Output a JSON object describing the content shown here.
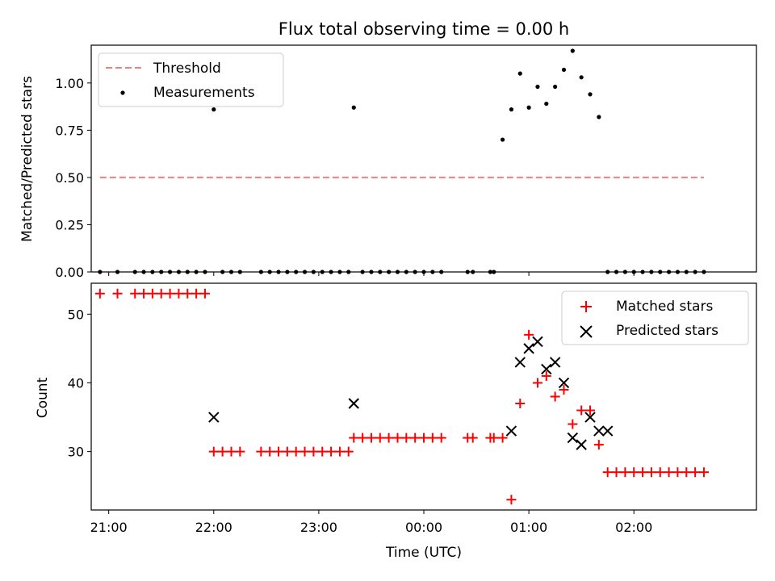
{
  "chart_data": [
    {
      "type": "scatter",
      "title": "Flux total observing time = 0.00 h",
      "xlabel": "",
      "ylabel": "Matched/Predicted stars",
      "xlim": [
        "20:50",
        "03:10"
      ],
      "ylim": [
        0,
        1.2
      ],
      "yticks": [
        "0.00",
        "0.25",
        "0.50",
        "0.75",
        "1.00"
      ],
      "ytick_values": [
        0,
        0.25,
        0.5,
        0.75,
        1.0
      ],
      "legend": "top-left",
      "colors": {
        "threshold": "#f08080",
        "measurements": "#000000"
      },
      "series": [
        {
          "name": "Threshold",
          "kind": "line",
          "style": "dashed",
          "x": [
            "20:55",
            "02:40"
          ],
          "y": [
            0.5,
            0.5
          ]
        },
        {
          "name": "Measurements",
          "kind": "scatter",
          "x": [
            "20:55",
            "21:05",
            "21:15",
            "21:20",
            "21:25",
            "21:30",
            "21:35",
            "21:40",
            "21:45",
            "21:50",
            "21:55",
            "22:00",
            "22:05",
            "22:10",
            "22:15",
            "22:27",
            "22:32",
            "22:37",
            "22:42",
            "22:47",
            "22:52",
            "22:57",
            "23:02",
            "23:07",
            "23:12",
            "23:17",
            "23:20",
            "23:25",
            "23:30",
            "23:35",
            "23:40",
            "23:45",
            "23:50",
            "23:55",
            "00:00",
            "00:05",
            "00:10",
            "00:25",
            "00:28",
            "00:38",
            "00:40",
            "00:45",
            "00:50",
            "00:55",
            "01:00",
            "01:05",
            "01:10",
            "01:15",
            "01:20",
            "01:25",
            "01:30",
            "01:35",
            "01:40",
            "01:45",
            "01:50",
            "01:55",
            "02:00",
            "02:05",
            "02:10",
            "02:15",
            "02:20",
            "02:25",
            "02:30",
            "02:35",
            "02:40"
          ],
          "y": [
            0,
            0,
            0,
            0,
            0,
            0,
            0,
            0,
            0,
            0,
            0,
            0.86,
            0,
            0,
            0,
            0,
            0,
            0,
            0,
            0,
            0,
            0,
            0,
            0,
            0,
            0,
            0.87,
            0,
            0,
            0,
            0,
            0,
            0,
            0,
            0,
            0,
            0,
            0,
            0,
            0,
            0,
            0.7,
            0.86,
            1.05,
            0.87,
            0.98,
            0.89,
            0.98,
            1.07,
            1.17,
            1.03,
            0.94,
            0.82,
            0,
            0,
            0,
            0,
            0,
            0,
            0,
            0,
            0,
            0,
            0,
            0
          ]
        }
      ]
    },
    {
      "type": "scatter",
      "title": "",
      "xlabel": "Time (UTC)",
      "ylabel": "Count",
      "xlim": [
        "20:50",
        "03:10"
      ],
      "ylim": [
        21.5,
        54.5
      ],
      "yticks": [
        "30",
        "40",
        "50"
      ],
      "ytick_values": [
        30,
        40,
        50
      ],
      "xticks": [
        "21:00",
        "22:00",
        "23:00",
        "00:00",
        "01:00",
        "02:00"
      ],
      "legend": "top-right",
      "colors": {
        "matched": "#ff0000",
        "predicted": "#000000"
      },
      "series": [
        {
          "name": "Matched stars",
          "marker": "+",
          "x": [
            "20:55",
            "21:05",
            "21:15",
            "21:20",
            "21:25",
            "21:30",
            "21:35",
            "21:40",
            "21:45",
            "21:50",
            "21:55",
            "22:00",
            "22:05",
            "22:10",
            "22:15",
            "22:27",
            "22:32",
            "22:37",
            "22:42",
            "22:47",
            "22:52",
            "22:57",
            "23:02",
            "23:07",
            "23:12",
            "23:17",
            "23:20",
            "23:25",
            "23:30",
            "23:35",
            "23:40",
            "23:45",
            "23:50",
            "23:55",
            "00:00",
            "00:05",
            "00:10",
            "00:25",
            "00:28",
            "00:38",
            "00:40",
            "00:45",
            "00:50",
            "00:55",
            "01:00",
            "01:05",
            "01:10",
            "01:15",
            "01:20",
            "01:25",
            "01:30",
            "01:35",
            "01:40",
            "01:45",
            "01:50",
            "01:55",
            "02:00",
            "02:05",
            "02:10",
            "02:15",
            "02:20",
            "02:25",
            "02:30",
            "02:35",
            "02:40"
          ],
          "y": [
            53,
            53,
            53,
            53,
            53,
            53,
            53,
            53,
            53,
            53,
            53,
            30,
            30,
            30,
            30,
            30,
            30,
            30,
            30,
            30,
            30,
            30,
            30,
            30,
            30,
            30,
            32,
            32,
            32,
            32,
            32,
            32,
            32,
            32,
            32,
            32,
            32,
            32,
            32,
            32,
            32,
            32,
            23,
            37,
            47,
            40,
            41,
            38,
            39,
            34,
            36,
            36,
            31,
            27,
            27,
            27,
            27,
            27,
            27,
            27,
            27,
            27,
            27,
            27,
            27
          ]
        },
        {
          "name": "Predicted stars",
          "marker": "x",
          "x": [
            "22:00",
            "23:20",
            "00:50",
            "00:55",
            "01:00",
            "01:05",
            "01:10",
            "01:15",
            "01:20",
            "01:25",
            "01:30",
            "01:35",
            "01:40",
            "01:45"
          ],
          "y": [
            35,
            37,
            33,
            43,
            45,
            46,
            42,
            43,
            40,
            32,
            31,
            35,
            33,
            33
          ]
        }
      ]
    }
  ]
}
